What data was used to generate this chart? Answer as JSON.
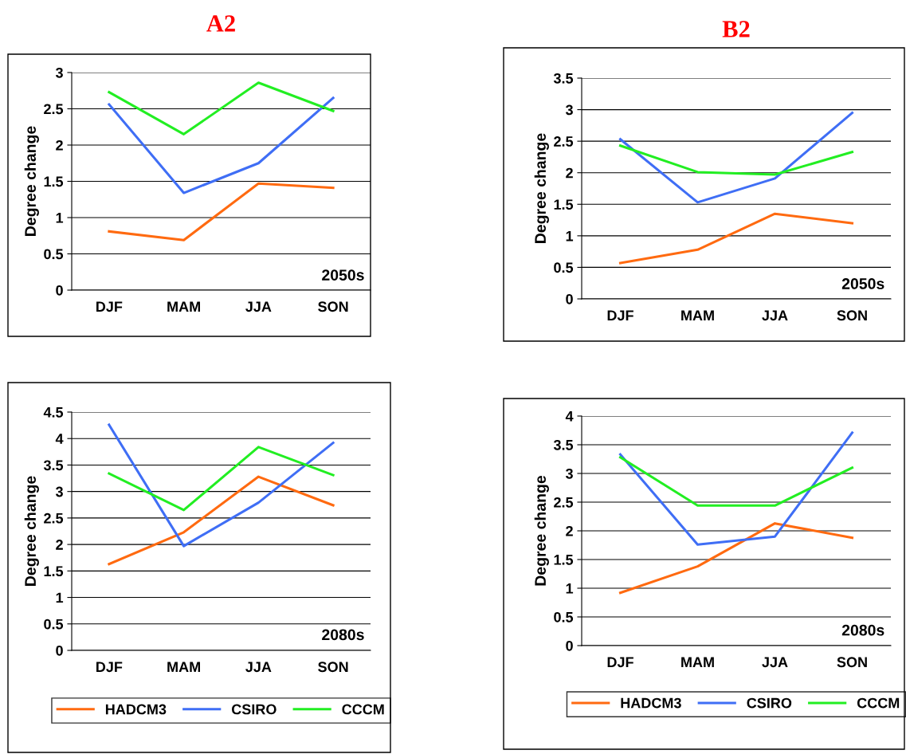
{
  "chart_data": [
    {
      "type": "line",
      "title": "A2",
      "ylabel": "Degree change",
      "categories": [
        "DJF",
        "MAM",
        "JJA",
        "SON"
      ],
      "ylim": [
        0,
        3
      ],
      "yticks": [
        0,
        0.5,
        1,
        1.5,
        2,
        2.5,
        3
      ],
      "grid": "y",
      "legend": false,
      "annotations": [
        "2050s"
      ],
      "series": [
        {
          "color": "#ff6a10",
          "values": [
            0.81,
            0.69,
            1.47,
            1.41
          ]
        },
        {
          "color": "#3f6ef5",
          "values": [
            2.56,
            1.34,
            1.75,
            2.65
          ]
        },
        {
          "color": "#22ee22",
          "values": [
            2.73,
            2.15,
            2.86,
            2.47
          ]
        }
      ]
    },
    {
      "type": "line",
      "title": "B2",
      "ylabel": "Degree change",
      "categories": [
        "DJF",
        "MAM",
        "JJA",
        "SON"
      ],
      "ylim": [
        0,
        3.5
      ],
      "yticks": [
        0,
        0.5,
        1,
        1.5,
        2,
        2.5,
        3,
        3.5
      ],
      "grid": "y",
      "legend": false,
      "annotations": [
        "2050s"
      ],
      "series": [
        {
          "color": "#ff6a10",
          "values": [
            0.57,
            0.78,
            1.35,
            1.2
          ]
        },
        {
          "color": "#3f6ef5",
          "values": [
            2.53,
            1.53,
            1.91,
            2.95
          ]
        },
        {
          "color": "#22ee22",
          "values": [
            2.43,
            2.01,
            1.97,
            2.33
          ]
        }
      ]
    },
    {
      "type": "line",
      "ylabel": "Degree change",
      "categories": [
        "DJF",
        "MAM",
        "JJA",
        "SON"
      ],
      "ylim": [
        0,
        4.5
      ],
      "yticks": [
        0,
        0.5,
        1,
        1.5,
        2,
        2.5,
        3,
        3.5,
        4,
        4.5
      ],
      "grid": "y",
      "legend": "bottom",
      "annotations": [
        "2080s"
      ],
      "series": [
        {
          "name": "HADCM3",
          "color": "#ff6a10",
          "values": [
            1.63,
            2.23,
            3.28,
            2.74
          ]
        },
        {
          "name": "CSIRO",
          "color": "#3f6ef5",
          "values": [
            4.26,
            1.97,
            2.79,
            3.92
          ]
        },
        {
          "name": "CCCM",
          "color": "#22ee22",
          "values": [
            3.34,
            2.65,
            3.84,
            3.31
          ]
        }
      ]
    },
    {
      "type": "line",
      "ylabel": "Degree change",
      "categories": [
        "DJF",
        "MAM",
        "JJA",
        "SON"
      ],
      "ylim": [
        0,
        4
      ],
      "yticks": [
        0,
        0.5,
        1,
        1.5,
        2,
        2.5,
        3,
        3.5,
        4
      ],
      "grid": "y",
      "legend": "bottom",
      "annotations": [
        "2080s"
      ],
      "series": [
        {
          "name": "HADCM3",
          "color": "#ff6a10",
          "values": [
            0.92,
            1.38,
            2.13,
            1.88
          ]
        },
        {
          "name": "CSIRO",
          "color": "#3f6ef5",
          "values": [
            3.33,
            1.76,
            1.9,
            3.71
          ]
        },
        {
          "name": "CCCM",
          "color": "#22ee22",
          "values": [
            3.28,
            2.44,
            2.44,
            3.1
          ]
        }
      ]
    }
  ]
}
